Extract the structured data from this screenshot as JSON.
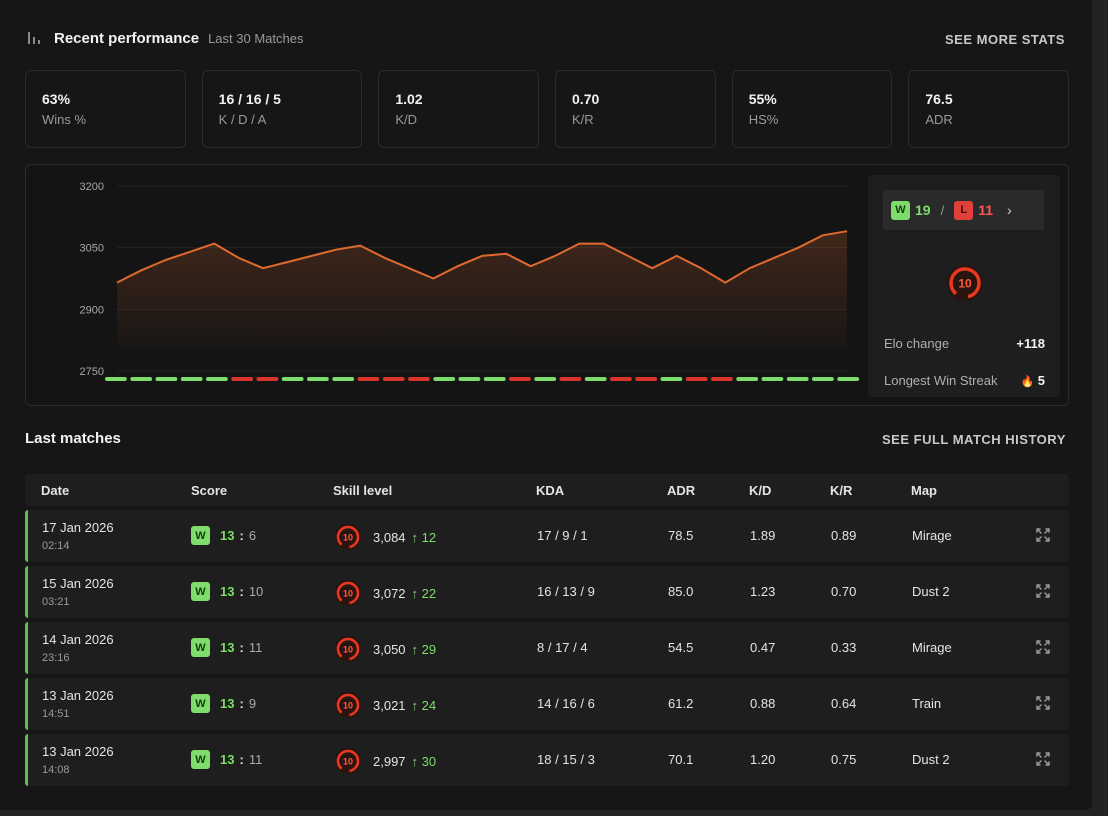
{
  "header": {
    "title": "Recent performance",
    "subtitle": "Last 30 Matches",
    "see_more": "SEE MORE STATS"
  },
  "stats": [
    {
      "value": "63%",
      "label": "Wins %"
    },
    {
      "value": "16 / 16 / 5",
      "label": "K / D / A"
    },
    {
      "value": "1.02",
      "label": "K/D"
    },
    {
      "value": "0.70",
      "label": "K/R"
    },
    {
      "value": "55%",
      "label": "HS%"
    },
    {
      "value": "76.5",
      "label": "ADR"
    }
  ],
  "chart_data": {
    "type": "area",
    "y_ticks": [
      "3200",
      "3050",
      "2900",
      "2750"
    ],
    "ylim": [
      2750,
      3200
    ],
    "grid": true,
    "values": [
      2965,
      2995,
      3020,
      3040,
      3060,
      3025,
      3000,
      3015,
      3030,
      3045,
      3055,
      3025,
      3000,
      2975,
      3005,
      3030,
      3035,
      3005,
      3030,
      3060,
      3060,
      3030,
      3000,
      3030,
      3000,
      2965,
      3000,
      3025,
      3050,
      3080,
      3090
    ],
    "results": [
      "W",
      "W",
      "W",
      "W",
      "W",
      "L",
      "L",
      "W",
      "W",
      "W",
      "L",
      "L",
      "L",
      "W",
      "W",
      "W",
      "L",
      "W",
      "L",
      "W",
      "L",
      "L",
      "W",
      "L",
      "L",
      "W",
      "W",
      "W",
      "W",
      "W"
    ],
    "colors": {
      "line": "#e06a2e",
      "win": "#7ddc6b",
      "loss": "#d9342b"
    }
  },
  "summary": {
    "wins_badge": "W",
    "wins": "19",
    "slash": "/",
    "losses_badge": "L",
    "losses": "11",
    "chevron": "›",
    "level": "10",
    "elo_change_label": "Elo change",
    "elo_change_value": "+118",
    "streak_label": "Longest Win Streak",
    "streak_icon": "🔥",
    "streak_value": "5"
  },
  "last_matches": {
    "title": "Last matches",
    "history_link": "SEE FULL MATCH HISTORY",
    "columns": [
      "Date",
      "Score",
      "Skill level",
      "KDA",
      "ADR",
      "K/D",
      "K/R",
      "Map"
    ],
    "rows": [
      {
        "date": "17 Jan 2026",
        "time": "02:14",
        "result": "W",
        "score_w": "13",
        "sep": ":",
        "score_l": "6",
        "level": "10",
        "elo": "3,084",
        "gain": "↑ 12",
        "kda": "17 / 9 / 1",
        "adr": "78.5",
        "kd": "1.89",
        "kr": "0.89",
        "map": "Mirage"
      },
      {
        "date": "15 Jan 2026",
        "time": "03:21",
        "result": "W",
        "score_w": "13",
        "sep": ":",
        "score_l": "10",
        "level": "10",
        "elo": "3,072",
        "gain": "↑ 22",
        "kda": "16 / 13 / 9",
        "adr": "85.0",
        "kd": "1.23",
        "kr": "0.70",
        "map": "Dust 2"
      },
      {
        "date": "14 Jan 2026",
        "time": "23:16",
        "result": "W",
        "score_w": "13",
        "sep": ":",
        "score_l": "11",
        "level": "10",
        "elo": "3,050",
        "gain": "↑ 29",
        "kda": "8 / 17 / 4",
        "adr": "54.5",
        "kd": "0.47",
        "kr": "0.33",
        "map": "Mirage"
      },
      {
        "date": "13 Jan 2026",
        "time": "14:51",
        "result": "W",
        "score_w": "13",
        "sep": ":",
        "score_l": "9",
        "level": "10",
        "elo": "3,021",
        "gain": "↑ 24",
        "kda": "14 / 16 / 6",
        "adr": "61.2",
        "kd": "0.88",
        "kr": "0.64",
        "map": "Train"
      },
      {
        "date": "13 Jan 2026",
        "time": "14:08",
        "result": "W",
        "score_w": "13",
        "sep": ":",
        "score_l": "11",
        "level": "10",
        "elo": "2,997",
        "gain": "↑ 30",
        "kda": "18 / 15 / 3",
        "adr": "70.1",
        "kd": "1.20",
        "kr": "0.75",
        "map": "Dust 2"
      }
    ]
  }
}
